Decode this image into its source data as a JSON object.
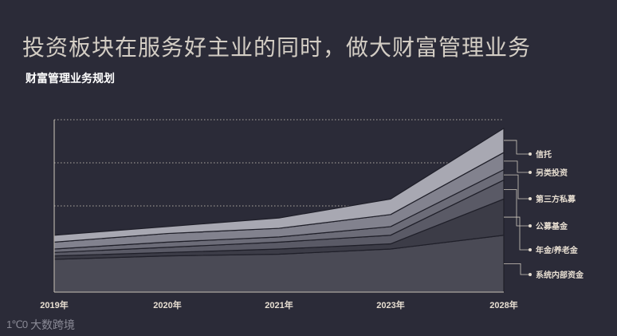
{
  "page": {
    "title": "投资板块在服务好主业的同时，做大财富管理业务",
    "subtitle": "财富管理业务规划"
  },
  "watermark": {
    "logo_text": "1℃0",
    "brand": "大数跨境"
  },
  "colors": {
    "background": "#2b2b38",
    "axis": "#cfc8bd",
    "label": "#e8dfd2",
    "gridline": "#cfc8bd"
  },
  "chart_data": {
    "type": "area",
    "stacked": true,
    "title": "财富管理业务规划",
    "categories": [
      "2019年",
      "2020年",
      "2021年",
      "2023年",
      "2028年"
    ],
    "ylim": [
      0,
      100
    ],
    "grid": true,
    "legend_position": "right",
    "series": [
      {
        "name": "系统内部资金",
        "color": "#4a4a55",
        "values": [
          19,
          21,
          22,
          25,
          33
        ]
      },
      {
        "name": "年金/养老金",
        "color": "#3c3c47",
        "values": [
          2,
          2,
          3,
          3,
          21
        ]
      },
      {
        "name": "公募基金",
        "color": "#5a5a66",
        "values": [
          2,
          3,
          4,
          5,
          11
        ]
      },
      {
        "name": "第三方私募",
        "color": "#6c6c78",
        "values": [
          2,
          3,
          3,
          5,
          6
        ]
      },
      {
        "name": "另类投资",
        "color": "#82828e",
        "values": [
          4,
          5,
          5,
          7,
          10
        ]
      },
      {
        "name": "信托",
        "color": "#a8a8b2",
        "values": [
          4,
          4,
          6,
          9,
          14
        ]
      }
    ]
  }
}
